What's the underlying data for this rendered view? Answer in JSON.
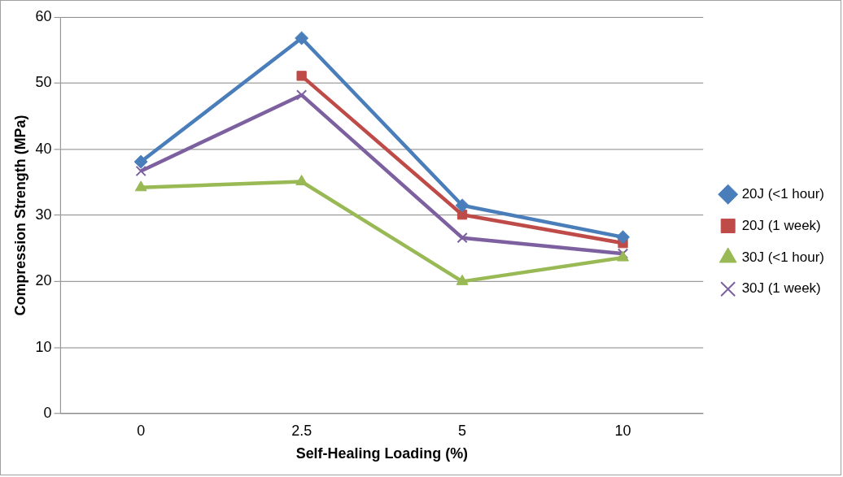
{
  "chart_data": {
    "type": "line",
    "xlabel": "Self-Healing Loading (%)",
    "ylabel": "Compression Strength (MPa)",
    "categories": [
      "0",
      "2.5",
      "5",
      "10"
    ],
    "series": [
      {
        "name": "20J (<1 hour)",
        "color": "#4a7ebb",
        "marker": "diamond",
        "values": [
          38.1,
          56.8,
          31.5,
          26.7
        ]
      },
      {
        "name": "20J (1 week)",
        "color": "#be4b48",
        "marker": "square",
        "values": [
          null,
          51.1,
          30.1,
          25.8
        ]
      },
      {
        "name": "30J (<1 hour)",
        "color": "#98b954",
        "marker": "triangle",
        "values": [
          34.2,
          35.1,
          20.0,
          23.6
        ]
      },
      {
        "name": "30J (1 week)",
        "color": "#7d60a0",
        "marker": "cross",
        "values": [
          36.7,
          48.2,
          26.6,
          24.2
        ]
      }
    ],
    "ylim": [
      0,
      60
    ],
    "yticks": [
      0,
      10,
      20,
      30,
      40,
      50,
      60
    ],
    "grid": "y",
    "legend": "right",
    "line_style": "solid"
  }
}
